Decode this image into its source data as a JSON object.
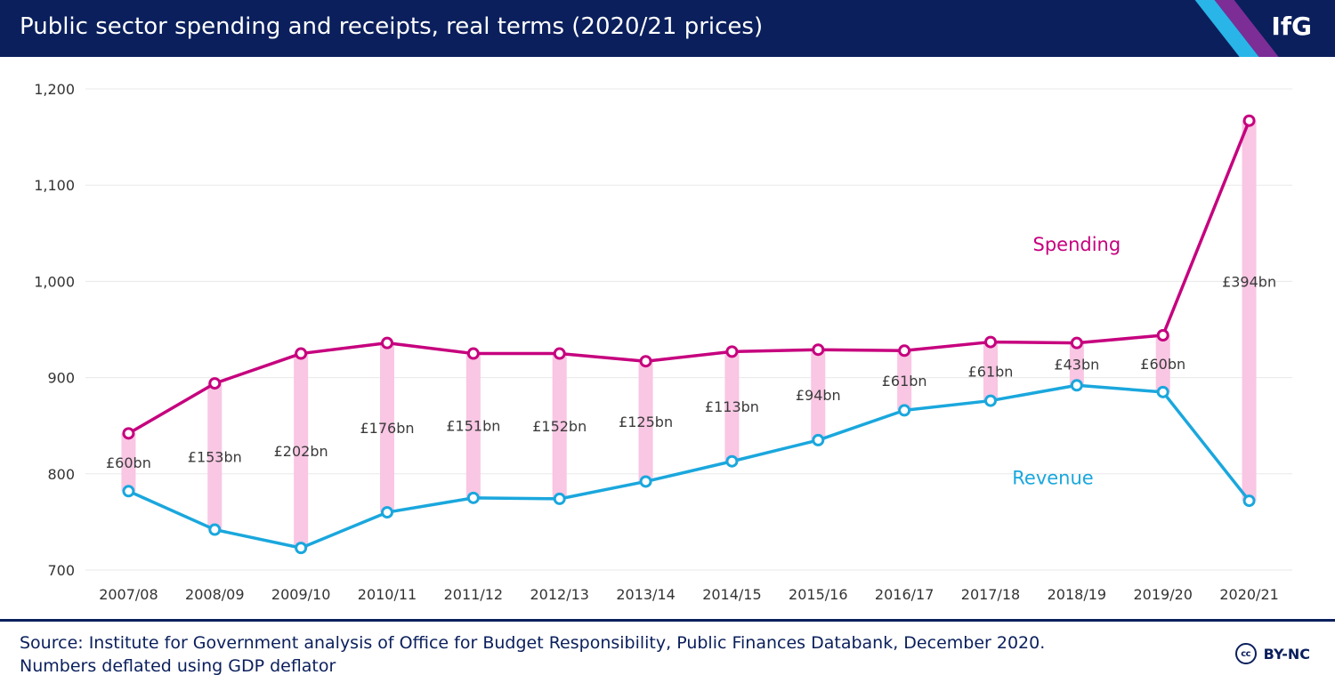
{
  "header": {
    "title": "Public sector spending and receipts, real terms (2020/21 prices)",
    "logo": "IfG",
    "stripe_colors": [
      "#29b5e8",
      "#c6007e"
    ]
  },
  "footer": {
    "source_line1": "Source: Institute for Government analysis of Office for Budget Responsibility, Public Finances Databank, December 2020.",
    "source_line2": "Numbers deflated using GDP deflator",
    "license_icon": "cc-icon",
    "license_text": "BY-NC"
  },
  "chart_data": {
    "type": "line",
    "categories": [
      "2007/08",
      "2008/09",
      "2009/10",
      "2010/11",
      "2011/12",
      "2012/13",
      "2013/14",
      "2014/15",
      "2015/16",
      "2016/17",
      "2017/18",
      "2018/19",
      "2019/20",
      "2020/21"
    ],
    "series": [
      {
        "name": "Spending",
        "color": "#c6007e",
        "values": [
          842,
          894,
          925,
          936,
          925,
          925,
          917,
          927,
          929,
          928,
          937,
          936,
          944,
          1167
        ]
      },
      {
        "name": "Revenue",
        "color": "#1aa7dd",
        "values": [
          782,
          742,
          723,
          760,
          775,
          774,
          792,
          813,
          835,
          866,
          876,
          892,
          885,
          772
        ]
      }
    ],
    "gap_labels": [
      "£60bn",
      "£153bn",
      "£202bn",
      "£176bn",
      "£151bn",
      "£152bn",
      "£125bn",
      "£113bn",
      "£94bn",
      "£61bn",
      "£61bn",
      "£43bn",
      "£60bn",
      "£394bn"
    ],
    "gap_bar_color": "#f9c6e3",
    "ylim": [
      700,
      1200
    ],
    "yticks": [
      700,
      800,
      900,
      1000,
      1100,
      1200
    ],
    "ytick_labels": [
      "700",
      "800",
      "900",
      "1,000",
      "1,100",
      "1,200"
    ],
    "grid": true,
    "legend": "inline labels on series"
  }
}
